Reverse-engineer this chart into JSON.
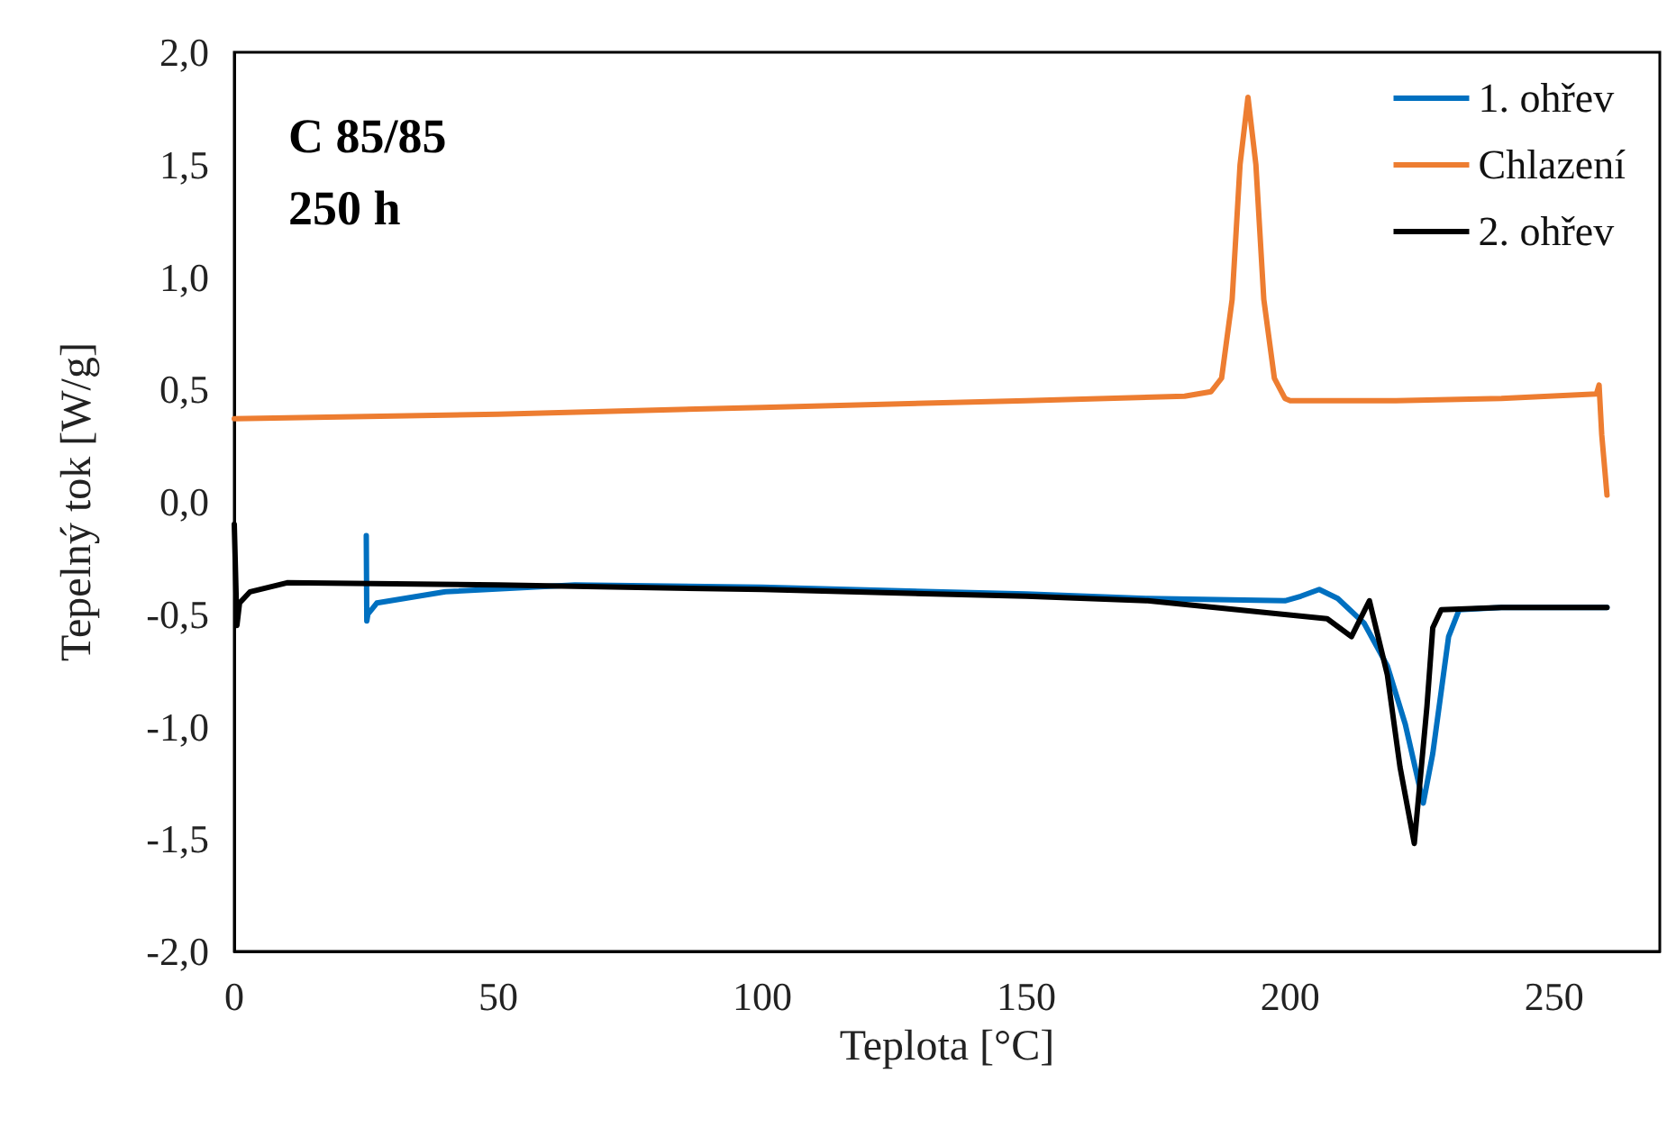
{
  "chart_data": {
    "type": "line",
    "xlabel": "Teplota [°C]",
    "ylabel": "Tepelný tok [W/g]",
    "annotations": [
      "C 85/85",
      "250 h"
    ],
    "xlim": [
      0,
      270
    ],
    "xticks": [
      0,
      50,
      100,
      150,
      200,
      250
    ],
    "ylim": [
      -2,
      2
    ],
    "yticks": [
      {
        "value": -2,
        "label": "-2,0"
      },
      {
        "value": -1.5,
        "label": "-1,5"
      },
      {
        "value": -1,
        "label": "-1,0"
      },
      {
        "value": -0.5,
        "label": "-0,5"
      },
      {
        "value": 0,
        "label": "0,0"
      },
      {
        "value": 0.5,
        "label": "0,5"
      },
      {
        "value": 1,
        "label": "1,0"
      },
      {
        "value": 1.5,
        "label": "1,5"
      },
      {
        "value": 2,
        "label": "2,0"
      }
    ],
    "grid": false,
    "legend": "top right",
    "marker": "none",
    "line_style": "solid",
    "series": [
      {
        "name": "1. ohřev",
        "color": "#0070c0",
        "x": [
          25,
          25.1,
          25.3,
          27,
          40,
          64.5,
          100,
          150,
          173,
          199,
          202,
          205.5,
          209,
          214,
          218.4,
          221.8,
          225.2,
          227,
          230,
          232,
          240,
          260
        ],
        "values": [
          -0.15,
          -0.53,
          -0.5,
          -0.45,
          -0.4,
          -0.37,
          -0.38,
          -0.41,
          -0.43,
          -0.44,
          -0.42,
          -0.39,
          -0.43,
          -0.54,
          -0.73,
          -0.99,
          -1.34,
          -1.12,
          -0.6,
          -0.48,
          -0.47,
          -0.47
        ]
      },
      {
        "name": "Chlazení",
        "color": "#ed7d31",
        "x": [
          0,
          50,
          100,
          150,
          180,
          185,
          187,
          189,
          190.5,
          192,
          193.5,
          195,
          197,
          199,
          200,
          220,
          240,
          258,
          258.5,
          259,
          260
        ],
        "values": [
          0.37,
          0.39,
          0.42,
          0.45,
          0.47,
          0.49,
          0.55,
          0.9,
          1.5,
          1.8,
          1.5,
          0.9,
          0.55,
          0.46,
          0.45,
          0.45,
          0.46,
          0.48,
          0.52,
          0.3,
          0.03
        ]
      },
      {
        "name": "2. ohřev",
        "color": "#000000",
        "x": [
          0,
          0.5,
          1,
          3,
          10,
          50,
          100,
          150,
          173,
          190,
          207,
          211.6,
          215,
          218.4,
          220.8,
          223.5,
          225.9,
          227,
          228.6,
          240,
          260
        ],
        "values": [
          -0.1,
          -0.55,
          -0.45,
          -0.4,
          -0.36,
          -0.37,
          -0.39,
          -0.42,
          -0.44,
          -0.48,
          -0.52,
          -0.6,
          -0.44,
          -0.77,
          -1.18,
          -1.52,
          -0.91,
          -0.56,
          -0.48,
          -0.47,
          -0.47
        ]
      }
    ]
  }
}
